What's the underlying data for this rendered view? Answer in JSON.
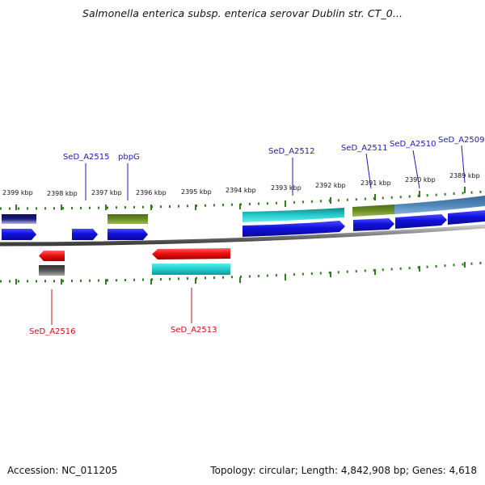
{
  "title": "Salmonella enterica subsp. enterica serovar Dublin str. CT_0...",
  "footer": {
    "accession": "Accession: NC_011205",
    "summary": "Topology: circular; Length: 4,842,908 bp; Genes: 4,618"
  },
  "ticks": [
    "2399 kbp",
    "2398 kbp",
    "2397 kbp",
    "2396 kbp",
    "2395 kbp",
    "2394 kbp",
    "2393 kbp",
    "2392 kbp",
    "2391 kbp",
    "2390 kbp",
    "2389 kbp"
  ],
  "gene_labels": {
    "SeD_A2515": "SeD_A2515",
    "pbpG": "pbpG",
    "SeD_A2512": "SeD_A2512",
    "SeD_A2511": "SeD_A2511",
    "SeD_A2510": "SeD_A2510",
    "SeD_A2509": "SeD_A2509",
    "SeD_A2516": "SeD_A2516",
    "SeD_A2513": "SeD_A2513"
  },
  "colors": {
    "forward_cds": "#1010e0",
    "reverse_cds": "#ee1111",
    "gene_teal": "#22cccc",
    "gene_olive": "#6b8e23",
    "gene_steel": "#4f86b8",
    "gene_navy": "#1c1c80",
    "gene_gray": "#555555",
    "tick_green": "#2e7d1e",
    "label_blue": "#1b1bbb",
    "label_red": "#cc1111"
  }
}
